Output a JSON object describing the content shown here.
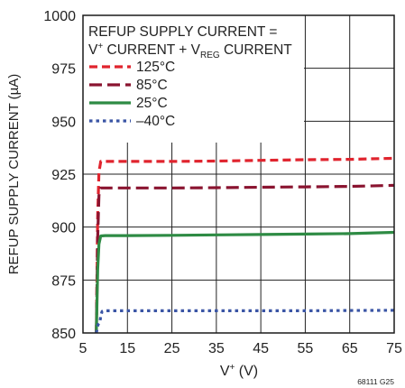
{
  "chart_data": {
    "type": "line",
    "title": "",
    "xlabel": "V+ (V)",
    "ylabel": "REFUP SUPPLY CURRENT (µA)",
    "xlim": [
      5,
      75
    ],
    "ylim": [
      850,
      1000
    ],
    "x_ticks": [
      "5",
      "15",
      "25",
      "35",
      "45",
      "55",
      "65",
      "75"
    ],
    "y_ticks": [
      "850",
      "875",
      "900",
      "925",
      "950",
      "975",
      "1000"
    ],
    "grid": true,
    "legend_title_line1": "REFUP SUPPLY CURRENT =",
    "legend_title_line2": "V+ CURRENT + VREG CURRENT",
    "legend_position": "top-left",
    "footnote": "68111 G25",
    "series": [
      {
        "name": "125°C",
        "color": "#e0242e",
        "dash": "dashed",
        "x": [
          8.0,
          8.3,
          8.6,
          9.0,
          10,
          15,
          25,
          35,
          45,
          55,
          65,
          75
        ],
        "y": [
          850,
          905,
          926,
          931,
          931,
          931,
          931,
          931.2,
          931.5,
          931.8,
          932,
          932.5
        ]
      },
      {
        "name": "85°C",
        "color": "#8a1430",
        "dash": "longdash",
        "x": [
          8.0,
          8.3,
          8.6,
          9.0,
          10,
          15,
          25,
          35,
          45,
          55,
          65,
          75
        ],
        "y": [
          850,
          895,
          915,
          918.5,
          918.5,
          918.5,
          918.5,
          918.6,
          918.8,
          919,
          919.2,
          919.7
        ]
      },
      {
        "name": "25°C",
        "color": "#2e8b44",
        "dash": "solid",
        "x": [
          8.0,
          8.3,
          8.6,
          9.0,
          10,
          15,
          25,
          35,
          45,
          55,
          65,
          75
        ],
        "y": [
          850,
          880,
          892,
          895.8,
          896,
          896,
          896.1,
          896.3,
          896.5,
          896.7,
          896.9,
          897.5
        ]
      },
      {
        "name": "–40°C",
        "color": "#3a55a5",
        "dash": "dotted",
        "x": [
          8.0,
          8.4,
          8.8,
          9.0,
          9.3,
          10,
          15,
          25,
          35,
          45,
          55,
          65,
          75
        ],
        "y": [
          850,
          854,
          855,
          858,
          860.2,
          860.5,
          860.5,
          860.5,
          860.5,
          860.5,
          860.5,
          860.6,
          860.7
        ]
      }
    ]
  }
}
